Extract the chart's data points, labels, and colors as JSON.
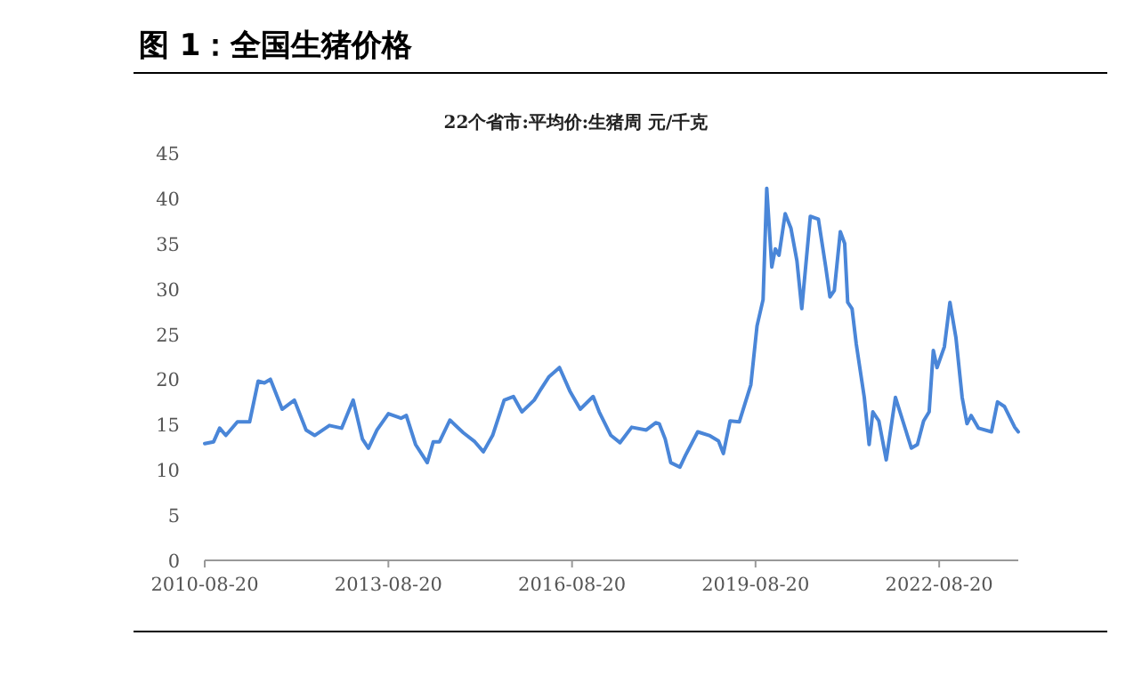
{
  "chart_data": {
    "type": "line",
    "title": "图 1：全国生猪价格",
    "subtitle": "22个省市:平均价:生猪周 元/千克",
    "x": [
      "2010-08-20",
      "2010-10-12",
      "2010-11-17",
      "2010-12-24",
      "2011-03-03",
      "2011-05-15",
      "2011-07-05",
      "2011-08-11",
      "2011-09-16",
      "2011-11-25",
      "2012-02-06",
      "2012-04-16",
      "2012-06-06",
      "2012-09-02",
      "2012-11-14",
      "2013-01-22",
      "2013-03-18",
      "2013-04-23",
      "2013-06-13",
      "2013-08-20",
      "2013-11-03",
      "2013-12-05",
      "2014-01-29",
      "2014-04-09",
      "2014-05-15",
      "2014-06-21",
      "2014-08-22",
      "2014-11-10",
      "2015-01-18",
      "2015-03-10",
      "2015-05-04",
      "2015-07-12",
      "2015-09-05",
      "2015-10-26",
      "2016-01-07",
      "2016-02-09",
      "2016-04-05",
      "2016-06-06",
      "2016-08-07",
      "2016-10-08",
      "2016-12-24",
      "2017-01-29",
      "2017-04-09",
      "2017-06-02",
      "2017-08-11",
      "2017-11-06",
      "2018-01-01",
      "2018-01-22",
      "2018-02-27",
      "2018-04-01",
      "2018-05-26",
      "2018-06-28",
      "2018-09-09",
      "2018-11-17",
      "2019-01-11",
      "2019-02-09",
      "2019-03-21",
      "2019-05-15",
      "2019-07-23",
      "2019-08-29",
      "2019-10-04",
      "2019-10-26",
      "2019-11-25",
      "2019-12-16",
      "2020-01-07",
      "2020-02-13",
      "2020-03-18",
      "2020-04-23",
      "2020-05-22",
      "2020-07-12",
      "2020-08-29",
      "2020-10-12",
      "2020-11-06",
      "2020-12-02",
      "2021-01-07",
      "2021-02-02",
      "2021-02-20",
      "2021-03-18",
      "2021-04-12",
      "2021-05-30",
      "2021-06-28",
      "2021-07-20",
      "2021-08-25",
      "2021-10-08",
      "2021-12-02",
      "2022-01-15",
      "2022-03-07",
      "2022-04-12",
      "2022-05-19",
      "2022-06-21",
      "2022-07-16",
      "2022-08-07",
      "2022-09-20",
      "2022-10-23",
      "2022-11-28",
      "2023-01-04",
      "2023-02-02",
      "2023-02-27",
      "2023-04-12",
      "2023-06-28",
      "2023-08-03",
      "2023-09-13",
      "2023-11-14",
      "2023-12-05"
    ],
    "values": [
      12.9,
      13.1,
      14.6,
      13.8,
      15.3,
      15.3,
      19.8,
      19.6,
      20.0,
      16.7,
      17.7,
      14.4,
      13.8,
      14.9,
      14.6,
      17.7,
      13.4,
      12.4,
      14.4,
      16.2,
      15.7,
      16.0,
      12.8,
      10.8,
      13.1,
      13.1,
      15.5,
      14.1,
      13.1,
      12.0,
      13.8,
      17.7,
      18.1,
      16.4,
      17.7,
      18.7,
      20.3,
      21.3,
      18.7,
      16.7,
      18.1,
      16.4,
      13.8,
      13.0,
      14.7,
      14.4,
      15.2,
      15.1,
      13.4,
      10.8,
      10.3,
      11.6,
      14.2,
      13.8,
      13.2,
      11.8,
      15.4,
      15.3,
      19.4,
      25.9,
      28.8,
      41.1,
      32.4,
      34.4,
      33.7,
      38.3,
      36.7,
      33.1,
      27.8,
      38.0,
      37.7,
      32.4,
      29.1,
      29.8,
      36.3,
      35.0,
      28.5,
      27.8,
      23.9,
      18.0,
      12.8,
      16.4,
      15.4,
      11.1,
      18.0,
      15.4,
      12.4,
      12.8,
      15.4,
      16.4,
      23.2,
      21.3,
      23.6,
      28.5,
      24.6,
      18.0,
      15.1,
      16.0,
      14.6,
      14.2,
      17.5,
      17.0,
      14.7,
      14.2
    ],
    "color": "#4a86d8",
    "line_style": "solid",
    "marker": "none",
    "grid": false,
    "xlim": [
      "2010-08-20",
      "2023-12-05"
    ],
    "xticks": [
      "2010-08-20",
      "2013-08-20",
      "2016-08-20",
      "2019-08-20",
      "2022-08-20"
    ],
    "ylim": [
      0,
      45
    ],
    "yticks": [
      0,
      5,
      10,
      15,
      20,
      25,
      30,
      35,
      40,
      45
    ]
  }
}
